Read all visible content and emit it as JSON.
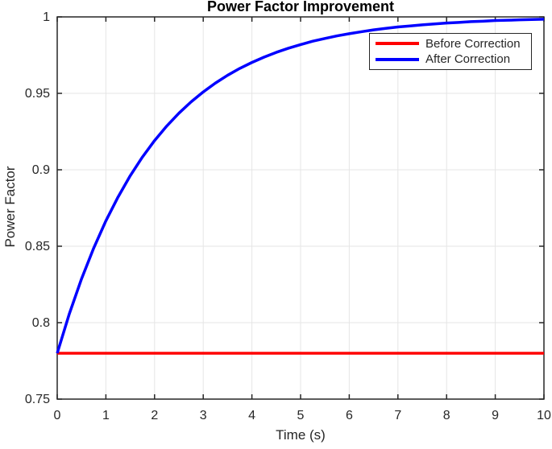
{
  "chart_data": {
    "type": "line",
    "title": "Power Factor Improvement",
    "xlabel": "Time (s)",
    "ylabel": "Power Factor",
    "xlim": [
      0,
      10
    ],
    "ylim": [
      0.75,
      1
    ],
    "xticks": [
      0,
      1,
      2,
      3,
      4,
      5,
      6,
      7,
      8,
      9,
      10
    ],
    "xtick_labels": [
      "0",
      "1",
      "2",
      "3",
      "4",
      "5",
      "6",
      "7",
      "8",
      "9",
      "10"
    ],
    "yticks": [
      0.75,
      0.8,
      0.85,
      0.9,
      0.95,
      1
    ],
    "ytick_labels": [
      "0.75",
      "0.8",
      "0.85",
      "0.9",
      "0.95",
      "1"
    ],
    "grid": true,
    "axis_color": "#262626",
    "grid_color": "#e5e5e5",
    "background": "#ffffff",
    "x": [
      0,
      0.25,
      0.5,
      0.75,
      1,
      1.25,
      1.5,
      1.75,
      2,
      2.25,
      2.5,
      2.75,
      3,
      3.25,
      3.5,
      3.75,
      4,
      4.25,
      4.5,
      4.75,
      5,
      5.25,
      5.5,
      5.75,
      6,
      6.25,
      6.5,
      6.75,
      7,
      7.25,
      7.5,
      7.75,
      8,
      8.25,
      8.5,
      8.75,
      9,
      9.25,
      9.5,
      9.75,
      10
    ],
    "series": [
      {
        "name": "Before Correction",
        "color": "#ff0000",
        "line_width": 3.5,
        "values": [
          0.78,
          0.78,
          0.78,
          0.78,
          0.78,
          0.78,
          0.78,
          0.78,
          0.78,
          0.78,
          0.78,
          0.78,
          0.78,
          0.78,
          0.78,
          0.78,
          0.78,
          0.78,
          0.78,
          0.78,
          0.78,
          0.78,
          0.78,
          0.78,
          0.78,
          0.78,
          0.78,
          0.78,
          0.78,
          0.78,
          0.78,
          0.78,
          0.78,
          0.78,
          0.78,
          0.78,
          0.78,
          0.78,
          0.78,
          0.78,
          0.78
        ]
      },
      {
        "name": "After Correction",
        "color": "#0000ff",
        "line_width": 3.5,
        "values": [
          0.78,
          0.8059,
          0.8287,
          0.8488,
          0.8666,
          0.8822,
          0.8961,
          0.9083,
          0.9191,
          0.9286,
          0.937,
          0.9444,
          0.9509,
          0.9567,
          0.9618,
          0.9663,
          0.9702,
          0.9737,
          0.9768,
          0.9795,
          0.9819,
          0.9841,
          0.9859,
          0.9876,
          0.989,
          0.9903,
          0.9915,
          0.9925,
          0.9934,
          0.9941,
          0.9948,
          0.9954,
          0.996,
          0.9964,
          0.9969,
          0.9972,
          0.9976,
          0.9978,
          0.9981,
          0.9983,
          0.9985
        ]
      }
    ],
    "legend": {
      "position": "northeast",
      "border_color": "#262626",
      "background": "#ffffff"
    }
  }
}
